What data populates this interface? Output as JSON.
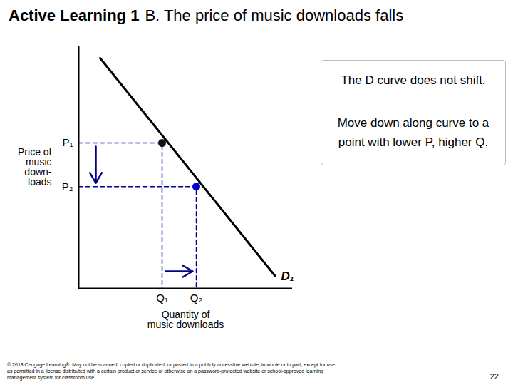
{
  "chart_data": {
    "type": "line",
    "title": "Active Learning 1",
    "subtitle": "B. The price of music downloads falls",
    "xlabel": "Quantity of\nmusic downloads",
    "ylabel": "Price of\nmusic\ndown-\nloads",
    "xlim": [
      0,
      10
    ],
    "ylim": [
      0,
      10
    ],
    "xticks": [
      {
        "value": 3.9,
        "label": "Q₁"
      },
      {
        "value": 5.5,
        "label": "Q₂"
      }
    ],
    "yticks": [
      {
        "value": 4.2,
        "label": "P₂"
      },
      {
        "value": 6.0,
        "label": "P₁"
      }
    ],
    "grid": false,
    "series": [
      {
        "name": "D₁",
        "type": "line",
        "color": "#000000",
        "x": [
          1.0,
          9.2
        ],
        "values": [
          9.5,
          0.5
        ]
      },
      {
        "type": "line",
        "line_style": "dashed",
        "color": "#00008b",
        "x": [
          0,
          3.9,
          3.9,
          null,
          0,
          5.5,
          5.5
        ],
        "values": [
          6.0,
          6.0,
          0,
          null,
          4.2,
          4.2,
          0
        ]
      },
      {
        "type": "scatter",
        "marker": "circle",
        "colors": [
          "#111111",
          "#0000cc"
        ],
        "x": [
          3.9,
          5.5
        ],
        "values": [
          6.0,
          4.2
        ]
      }
    ],
    "annotations": [
      "The D curve does not shift.",
      "Move down along curve to a\npoint with lower P, higher Q."
    ],
    "caption": "© 2018 Cengage Learning®. May not be scanned, copied or duplicated, or posted to a publicly accessible website, in whole or in part, except for use\nas permitted in a license distributed with a certain product or service or otherwise on a password-protected website or school-approved learning\nmanagement system for classroom use.",
    "page_number": "22"
  }
}
